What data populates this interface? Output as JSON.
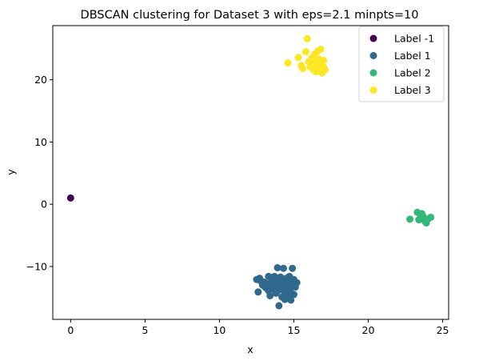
{
  "chart_data": {
    "type": "scatter",
    "title": "DBSCAN clustering for Dataset 3 with eps=2.1 minpts=10",
    "xlabel": "x",
    "ylabel": "y",
    "xlim": [
      -1.2,
      25.4
    ],
    "ylim": [
      -18.5,
      28.7
    ],
    "xticks": [
      0,
      5,
      10,
      15,
      20,
      25
    ],
    "yticks": [
      -10,
      0,
      10,
      20
    ],
    "grid": false,
    "legend_position": "top-right",
    "series": [
      {
        "name": "Label -1",
        "color": "#440154",
        "points": [
          [
            0,
            1
          ]
        ]
      },
      {
        "name": "Label 1",
        "color": "#31688e",
        "points": [
          [
            12.5,
            -12.1
          ],
          [
            12.7,
            -11.9
          ],
          [
            12.6,
            -14.1
          ],
          [
            12.9,
            -13.0
          ],
          [
            13.0,
            -12.5
          ],
          [
            13.1,
            -13.4
          ],
          [
            13.2,
            -12.8
          ],
          [
            13.3,
            -11.6
          ],
          [
            13.3,
            -13.9
          ],
          [
            13.4,
            -14.7
          ],
          [
            13.5,
            -12.3
          ],
          [
            13.6,
            -13.6
          ],
          [
            13.7,
            -12.0
          ],
          [
            13.7,
            -11.6
          ],
          [
            13.8,
            -13.1
          ],
          [
            13.8,
            -14.3
          ],
          [
            13.9,
            -12.7
          ],
          [
            13.9,
            -10.2
          ],
          [
            14.0,
            -13.8
          ],
          [
            14.0,
            -16.3
          ],
          [
            14.1,
            -12.2
          ],
          [
            14.1,
            -11.7
          ],
          [
            14.2,
            -14.9
          ],
          [
            14.2,
            -13.3
          ],
          [
            14.3,
            -12.6
          ],
          [
            14.3,
            -10.3
          ],
          [
            14.4,
            -15.3
          ],
          [
            14.4,
            -14.1
          ],
          [
            14.5,
            -13.0
          ],
          [
            14.5,
            -11.9
          ],
          [
            14.6,
            -12.4
          ],
          [
            14.6,
            -14.7
          ],
          [
            14.7,
            -13.5
          ],
          [
            14.7,
            -11.6
          ],
          [
            14.8,
            -14.2
          ],
          [
            14.8,
            -15.4
          ],
          [
            14.9,
            -12.9
          ],
          [
            14.9,
            -10.3
          ],
          [
            15.0,
            -14.5
          ],
          [
            15.0,
            -12.1
          ],
          [
            15.1,
            -13.3
          ],
          [
            15.2,
            -12.6
          ],
          [
            13.5,
            -13.0
          ],
          [
            14.0,
            -13.0
          ],
          [
            12.8,
            -12.4
          ]
        ]
      },
      {
        "name": "Label 2",
        "color": "#35b779",
        "points": [
          [
            22.8,
            -2.4
          ],
          [
            23.3,
            -1.3
          ],
          [
            23.4,
            -2.5
          ],
          [
            23.6,
            -1.5
          ],
          [
            23.7,
            -2.0
          ],
          [
            23.8,
            -2.7
          ],
          [
            23.9,
            -3.0
          ],
          [
            24.0,
            -2.4
          ],
          [
            24.2,
            -2.1
          ],
          [
            23.5,
            -2.2
          ]
        ]
      },
      {
        "name": "Label 3",
        "color": "#fde725",
        "points": [
          [
            14.6,
            22.7
          ],
          [
            15.3,
            23.6
          ],
          [
            15.5,
            22.3
          ],
          [
            15.6,
            21.8
          ],
          [
            15.8,
            24.5
          ],
          [
            15.9,
            26.6
          ],
          [
            16.0,
            22.9
          ],
          [
            16.1,
            22.1
          ],
          [
            16.2,
            23.5
          ],
          [
            16.3,
            21.6
          ],
          [
            16.3,
            22.4
          ],
          [
            16.4,
            24.1
          ],
          [
            16.4,
            23.0
          ],
          [
            16.5,
            21.3
          ],
          [
            16.5,
            22.7
          ],
          [
            16.6,
            24.6
          ],
          [
            16.6,
            22.2
          ],
          [
            16.7,
            23.3
          ],
          [
            16.7,
            21.9
          ],
          [
            16.8,
            24.9
          ],
          [
            16.8,
            22.5
          ],
          [
            16.9,
            21.1
          ],
          [
            17.0,
            23.1
          ],
          [
            17.0,
            22.0
          ],
          [
            17.1,
            21.6
          ]
        ]
      }
    ]
  }
}
